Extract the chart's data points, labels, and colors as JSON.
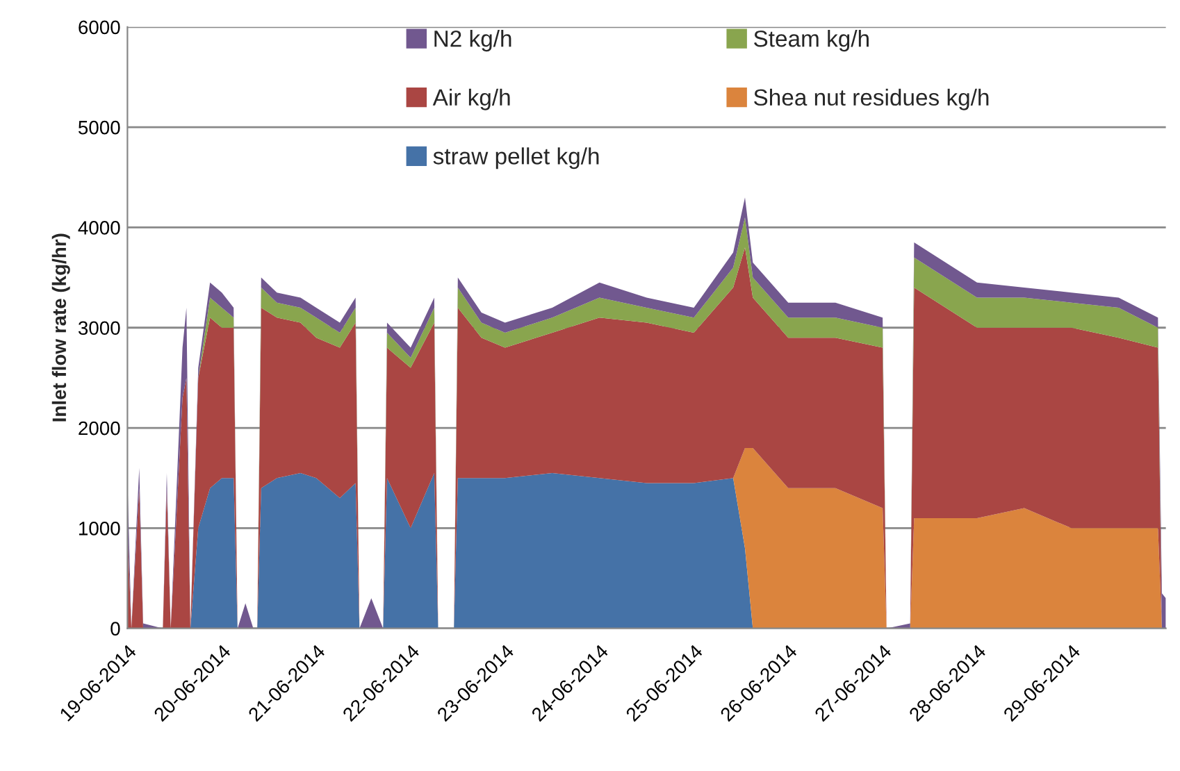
{
  "chart_data": {
    "type": "area",
    "stacked": true,
    "ylabel": "Inlet flow rate (kg/hr)",
    "x": [
      "2014-06-19T00:00",
      "2014-06-19T01:00",
      "2014-06-19T03:00",
      "2014-06-19T04:00",
      "2014-06-19T09:00",
      "2014-06-19T10:00",
      "2014-06-19T11:00",
      "2014-06-19T14:00",
      "2014-06-19T15:00",
      "2014-06-19T16:00",
      "2014-06-19T18:00",
      "2014-06-19T21:00",
      "2014-06-20T00:00",
      "2014-06-20T03:00",
      "2014-06-20T04:00",
      "2014-06-20T06:00",
      "2014-06-20T08:00",
      "2014-06-20T09:00",
      "2014-06-20T10:00",
      "2014-06-20T14:00",
      "2014-06-20T20:00",
      "2014-06-21T00:00",
      "2014-06-21T06:00",
      "2014-06-21T10:00",
      "2014-06-21T11:00",
      "2014-06-21T14:00",
      "2014-06-21T17:00",
      "2014-06-21T18:00",
      "2014-06-22T00:00",
      "2014-06-22T06:00",
      "2014-06-22T07:00",
      "2014-06-22T11:00",
      "2014-06-22T12:00",
      "2014-06-22T18:00",
      "2014-06-23T00:00",
      "2014-06-23T12:00",
      "2014-06-24T00:00",
      "2014-06-24T12:00",
      "2014-06-25T00:00",
      "2014-06-25T10:00",
      "2014-06-25T13:00",
      "2014-06-25T15:00",
      "2014-06-26T00:00",
      "2014-06-26T12:00",
      "2014-06-27T00:00",
      "2014-06-27T01:00",
      "2014-06-27T07:00",
      "2014-06-27T08:00",
      "2014-06-28T00:00",
      "2014-06-28T12:00",
      "2014-06-29T00:00",
      "2014-06-29T12:00",
      "2014-06-29T22:00",
      "2014-06-29T23:00",
      "2014-06-30T00:00"
    ],
    "series": [
      {
        "name": "straw pellet kg/h",
        "color": "#4572a7",
        "values": [
          0,
          0,
          0,
          0,
          0,
          0,
          0,
          0,
          0,
          0,
          1000,
          1400,
          1500,
          1500,
          0,
          0,
          0,
          0,
          1400,
          1500,
          1550,
          1500,
          1300,
          1450,
          0,
          0,
          0,
          1500,
          1000,
          1550,
          0,
          0,
          1500,
          1500,
          1500,
          1550,
          1500,
          1450,
          1450,
          1500,
          800,
          0,
          0,
          0,
          0,
          0,
          0,
          0,
          0,
          0,
          0,
          0,
          0,
          0,
          0
        ]
      },
      {
        "name": "Shea nut residues kg/h",
        "color": "#db843d",
        "values": [
          0,
          0,
          0,
          0,
          0,
          0,
          0,
          0,
          0,
          0,
          0,
          0,
          0,
          0,
          0,
          0,
          0,
          0,
          0,
          0,
          0,
          0,
          0,
          0,
          0,
          0,
          0,
          0,
          0,
          0,
          0,
          0,
          0,
          0,
          0,
          0,
          0,
          0,
          0,
          0,
          1000,
          1800,
          1400,
          1400,
          1200,
          0,
          0,
          1100,
          1100,
          1200,
          1000,
          1000,
          1000,
          0,
          0
        ]
      },
      {
        "name": "Air kg/h",
        "color": "#aa4643",
        "values": [
          1000,
          0,
          1400,
          0,
          0,
          1400,
          0,
          2300,
          2500,
          0,
          1500,
          1700,
          1500,
          1500,
          0,
          0,
          0,
          0,
          1800,
          1600,
          1500,
          1400,
          1500,
          1600,
          0,
          0,
          0,
          1300,
          1600,
          1500,
          0,
          0,
          1700,
          1400,
          1300,
          1400,
          1600,
          1600,
          1500,
          1900,
          2000,
          1500,
          1500,
          1500,
          1600,
          0,
          0,
          2300,
          1900,
          1800,
          2000,
          1900,
          1800,
          0,
          0
        ]
      },
      {
        "name": "Steam kg/h",
        "color": "#89a54e",
        "values": [
          0,
          0,
          0,
          0,
          0,
          0,
          0,
          0,
          0,
          0,
          0,
          200,
          200,
          100,
          0,
          0,
          0,
          0,
          200,
          150,
          150,
          200,
          150,
          150,
          0,
          0,
          0,
          150,
          100,
          150,
          0,
          0,
          200,
          150,
          150,
          150,
          200,
          150,
          150,
          200,
          300,
          200,
          200,
          200,
          200,
          0,
          0,
          300,
          300,
          300,
          250,
          300,
          200,
          0,
          0
        ]
      },
      {
        "name": "N2 kg/h",
        "color": "#71588f",
        "values": [
          500,
          0,
          200,
          50,
          0,
          150,
          0,
          500,
          700,
          0,
          100,
          150,
          150,
          100,
          0,
          250,
          0,
          0,
          100,
          100,
          100,
          100,
          100,
          100,
          0,
          300,
          0,
          100,
          100,
          100,
          0,
          0,
          100,
          100,
          100,
          100,
          150,
          100,
          100,
          150,
          200,
          150,
          150,
          150,
          100,
          0,
          50,
          150,
          150,
          100,
          100,
          100,
          100,
          350,
          300
        ]
      }
    ],
    "xlim": [
      "2014-06-19T00:00",
      "2014-06-30T00:00"
    ],
    "xticks": [
      {
        "value": "2014-06-19",
        "label": "19-06-2014"
      },
      {
        "value": "2014-06-20",
        "label": "20-06-2014"
      },
      {
        "value": "2014-06-21",
        "label": "21-06-2014"
      },
      {
        "value": "2014-06-22",
        "label": "22-06-2014"
      },
      {
        "value": "2014-06-23",
        "label": "23-06-2014"
      },
      {
        "value": "2014-06-24",
        "label": "24-06-2014"
      },
      {
        "value": "2014-06-25",
        "label": "25-06-2014"
      },
      {
        "value": "2014-06-26",
        "label": "26-06-2014"
      },
      {
        "value": "2014-06-27",
        "label": "27-06-2014"
      },
      {
        "value": "2014-06-28",
        "label": "28-06-2014"
      },
      {
        "value": "2014-06-29",
        "label": "29-06-2014"
      }
    ],
    "ylim": [
      0,
      6000
    ],
    "yticks": [
      0,
      1000,
      2000,
      3000,
      4000,
      5000,
      6000
    ],
    "grid": "y",
    "legend": "top"
  }
}
